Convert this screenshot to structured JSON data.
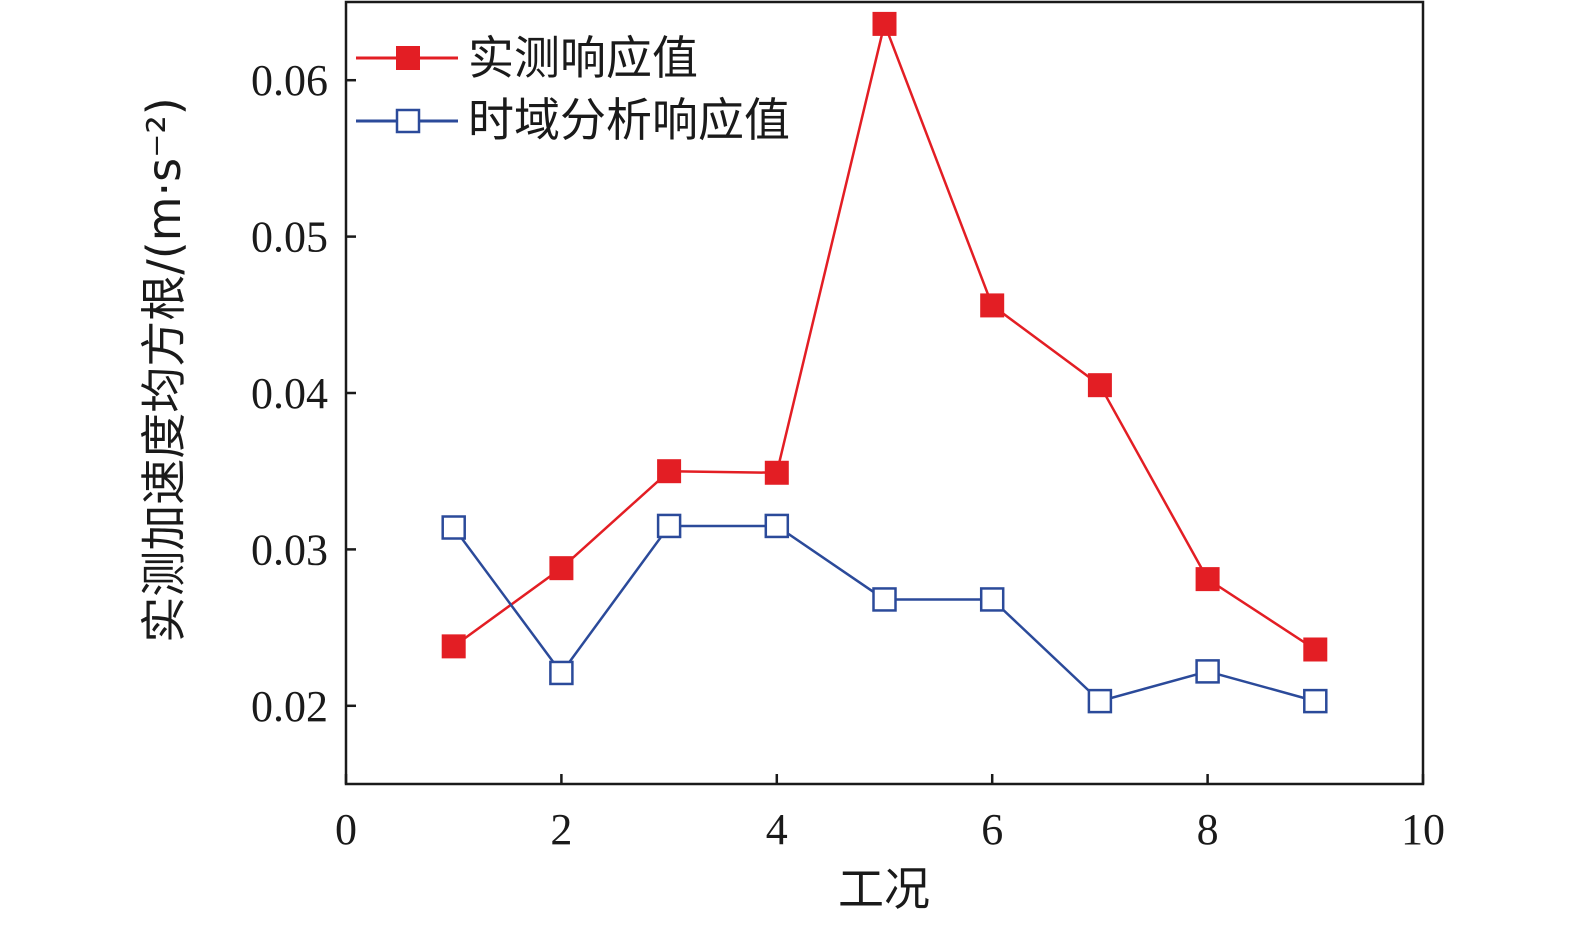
{
  "chart_data": {
    "type": "line",
    "xlabel": "工况",
    "ylabel": "实测加速度均方根/(m·s⁻²)",
    "xlim": [
      0,
      10
    ],
    "ylim": [
      0.015,
      0.065
    ],
    "xticks": [
      0,
      2,
      4,
      6,
      8,
      10
    ],
    "xtick_labels": [
      "0",
      "2",
      "4",
      "6",
      "8",
      "10"
    ],
    "yticks": [
      0.02,
      0.03,
      0.04,
      0.05,
      0.06
    ],
    "ytick_labels": [
      "0.02",
      "0.03",
      "0.04",
      "0.05",
      "0.06"
    ],
    "grid": false,
    "legend_position": "top-left",
    "series": [
      {
        "name": "实测响应值",
        "marker": "filled-square",
        "color": "#e31e24",
        "x": [
          1,
          2,
          3,
          4,
          5,
          6,
          7,
          8,
          9
        ],
        "y": [
          0.0238,
          0.0288,
          0.035,
          0.0349,
          0.0636,
          0.0456,
          0.0405,
          0.0281,
          0.0236
        ]
      },
      {
        "name": "时域分析响应值",
        "marker": "open-square",
        "color": "#2b4a9a",
        "x": [
          1,
          2,
          3,
          4,
          5,
          6,
          7,
          8,
          9
        ],
        "y": [
          0.0314,
          0.0221,
          0.0315,
          0.0315,
          0.0268,
          0.0268,
          0.0203,
          0.0222,
          0.0203
        ]
      }
    ]
  }
}
